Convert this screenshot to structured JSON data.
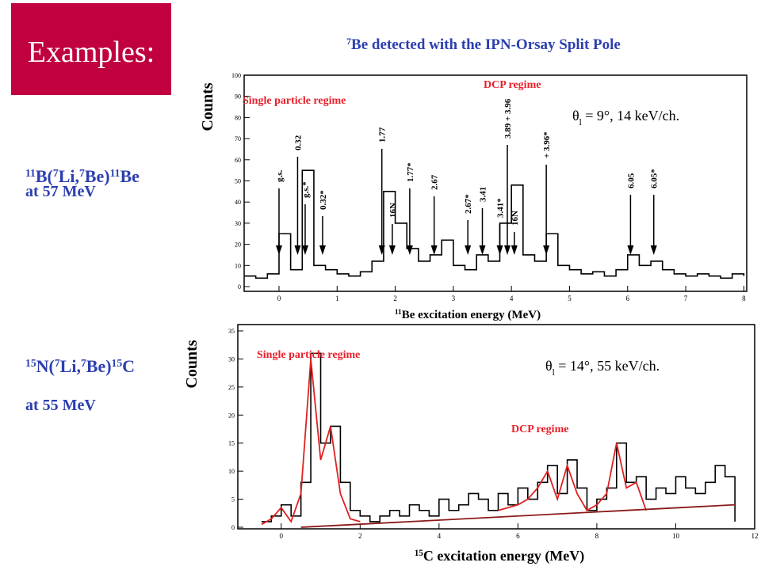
{
  "header": {
    "title": "Examples:"
  },
  "reactions": [
    {
      "parts": [
        {
          "text": "11",
          "script": "sup"
        },
        {
          "text": "B("
        },
        {
          "text": "7",
          "script": "sup"
        },
        {
          "text": "Li,"
        },
        {
          "text": "7",
          "script": "sup"
        },
        {
          "text": "Be)"
        },
        {
          "text": "11",
          "script": "sup"
        },
        {
          "text": "Be"
        }
      ],
      "energy": "at 57 MeV"
    },
    {
      "parts": [
        {
          "text": "15",
          "script": "sup"
        },
        {
          "text": "N("
        },
        {
          "text": "7",
          "script": "sup"
        },
        {
          "text": "Li,"
        },
        {
          "text": "7",
          "script": "sup"
        },
        {
          "text": "Be)"
        },
        {
          "text": "15",
          "script": "sup"
        },
        {
          "text": "C"
        }
      ],
      "energy": "at 55 MeV"
    }
  ],
  "chart_data": [
    {
      "type": "line",
      "title": [
        {
          "text": "7",
          "script": "sup"
        },
        {
          "text": "Be detected with the IPN-Orsay Split Pole"
        }
      ],
      "xlabel": [
        {
          "text": "11",
          "script": "sup"
        },
        {
          "text": "Be excitation energy (MeV)"
        }
      ],
      "ylabel": "Counts",
      "regimes": [
        "Single particle regime",
        "DCP regime"
      ],
      "setting": [
        {
          "text": "θ"
        },
        {
          "text": "l",
          "script": "sub"
        },
        {
          "text": " = 9°, 14 keV/ch."
        }
      ],
      "xlim": [
        -0.6,
        8.05
      ],
      "ylim": [
        0,
        100
      ],
      "xticks": [
        0,
        1,
        2,
        3,
        4,
        5,
        6,
        7,
        8
      ],
      "yticks": [
        0,
        10,
        20,
        30,
        40,
        50,
        60,
        70,
        80,
        90,
        100
      ],
      "x": [
        -0.6,
        -0.4,
        -0.2,
        0,
        0.2,
        0.4,
        0.6,
        0.8,
        1.0,
        1.2,
        1.4,
        1.6,
        1.8,
        2.0,
        2.2,
        2.4,
        2.6,
        2.8,
        3.0,
        3.2,
        3.4,
        3.6,
        3.8,
        4.0,
        4.2,
        4.4,
        4.6,
        4.8,
        5.0,
        5.2,
        5.4,
        5.6,
        5.8,
        6.0,
        6.2,
        6.4,
        6.6,
        6.8,
        7.0,
        7.2,
        7.4,
        7.6,
        7.8,
        8.0
      ],
      "series": [
        {
          "color": "#000000",
          "values": [
            5,
            4,
            6,
            25,
            8,
            55,
            10,
            8,
            6,
            5,
            7,
            12,
            45,
            30,
            18,
            12,
            15,
            22,
            10,
            8,
            15,
            12,
            30,
            48,
            15,
            12,
            25,
            10,
            8,
            6,
            7,
            5,
            8,
            15,
            10,
            12,
            8,
            6,
            5,
            6,
            5,
            4,
            6,
            5
          ]
        }
      ],
      "annotations": [
        {
          "text": "g.s.",
          "x": 0
        },
        {
          "text": "0.32",
          "x": 0.32
        },
        {
          "text": "g.s.*",
          "x": 0.45
        },
        {
          "text": "0.32*",
          "x": 0.75
        },
        {
          "text": "1.77",
          "x": 1.77
        },
        {
          "text": "16N",
          "x": 1.95
        },
        {
          "text": "1.77*",
          "x": 2.25
        },
        {
          "text": "2.67",
          "x": 2.67
        },
        {
          "text": "2.67*",
          "x": 3.25
        },
        {
          "text": "3.41",
          "x": 3.5
        },
        {
          "text": "3.41*",
          "x": 3.8
        },
        {
          "text": "3.89 + 3.96",
          "x": 3.93
        },
        {
          "text": "16N",
          "x": 4.05
        },
        {
          "text": "+ 3.96*",
          "x": 4.6
        },
        {
          "text": "6.05",
          "x": 6.05
        },
        {
          "text": "6.05*",
          "x": 6.45
        }
      ]
    },
    {
      "type": "line",
      "xlabel": [
        {
          "text": "15",
          "script": "sup"
        },
        {
          "text": "C excitation energy (MeV)"
        }
      ],
      "ylabel": "Counts",
      "regimes": [
        "Single particle regime",
        "DCP regime"
      ],
      "setting": [
        {
          "text": "θ"
        },
        {
          "text": "l",
          "script": "sub"
        },
        {
          "text": " = 14°, 55 keV/ch."
        }
      ],
      "xlim": [
        -1.1,
        12
      ],
      "ylim": [
        0,
        35
      ],
      "xticks": [
        0,
        2,
        4,
        6,
        8,
        10,
        12
      ],
      "yticks": [
        0,
        5,
        10,
        15,
        20,
        25,
        30,
        35
      ],
      "x": [
        -0.5,
        -0.25,
        0,
        0.25,
        0.5,
        0.75,
        1.0,
        1.25,
        1.5,
        1.75,
        2.0,
        2.25,
        2.5,
        2.75,
        3.0,
        3.25,
        3.5,
        3.75,
        4.0,
        4.25,
        4.5,
        4.75,
        5.0,
        5.25,
        5.5,
        5.75,
        6.0,
        6.25,
        6.5,
        6.75,
        7.0,
        7.25,
        7.5,
        7.75,
        8.0,
        8.25,
        8.5,
        8.75,
        9.0,
        9.25,
        9.5,
        9.75,
        10.0,
        10.25,
        10.5,
        10.75,
        11.0,
        11.25,
        11.5
      ],
      "series": [
        {
          "color": "#000000",
          "values": [
            1,
            2,
            4,
            2,
            8,
            31,
            15,
            18,
            8,
            3,
            2,
            1,
            2,
            3,
            2,
            4,
            3,
            2,
            5,
            3,
            4,
            6,
            5,
            3,
            6,
            4,
            7,
            5,
            8,
            11,
            6,
            12,
            7,
            3,
            5,
            7,
            15,
            8,
            9,
            5,
            7,
            6,
            9,
            7,
            6,
            8,
            11,
            9,
            1
          ]
        },
        {
          "color": "#e02020",
          "values": [
            0.5,
            1.5,
            3.5,
            1,
            6,
            30,
            12,
            18,
            6,
            1.5,
            1,
            null,
            null,
            null,
            null,
            null,
            null,
            null,
            null,
            null,
            null,
            null,
            null,
            null,
            3,
            3.5,
            4,
            5,
            7,
            10,
            5,
            11,
            6,
            3,
            4,
            6,
            15,
            7,
            8,
            3,
            null,
            null,
            null,
            null,
            null,
            null,
            null,
            null,
            null
          ]
        },
        {
          "color": "#8b1a1a",
          "x": [
            0.5,
            11.5
          ],
          "values": [
            0,
            4
          ]
        }
      ]
    }
  ]
}
